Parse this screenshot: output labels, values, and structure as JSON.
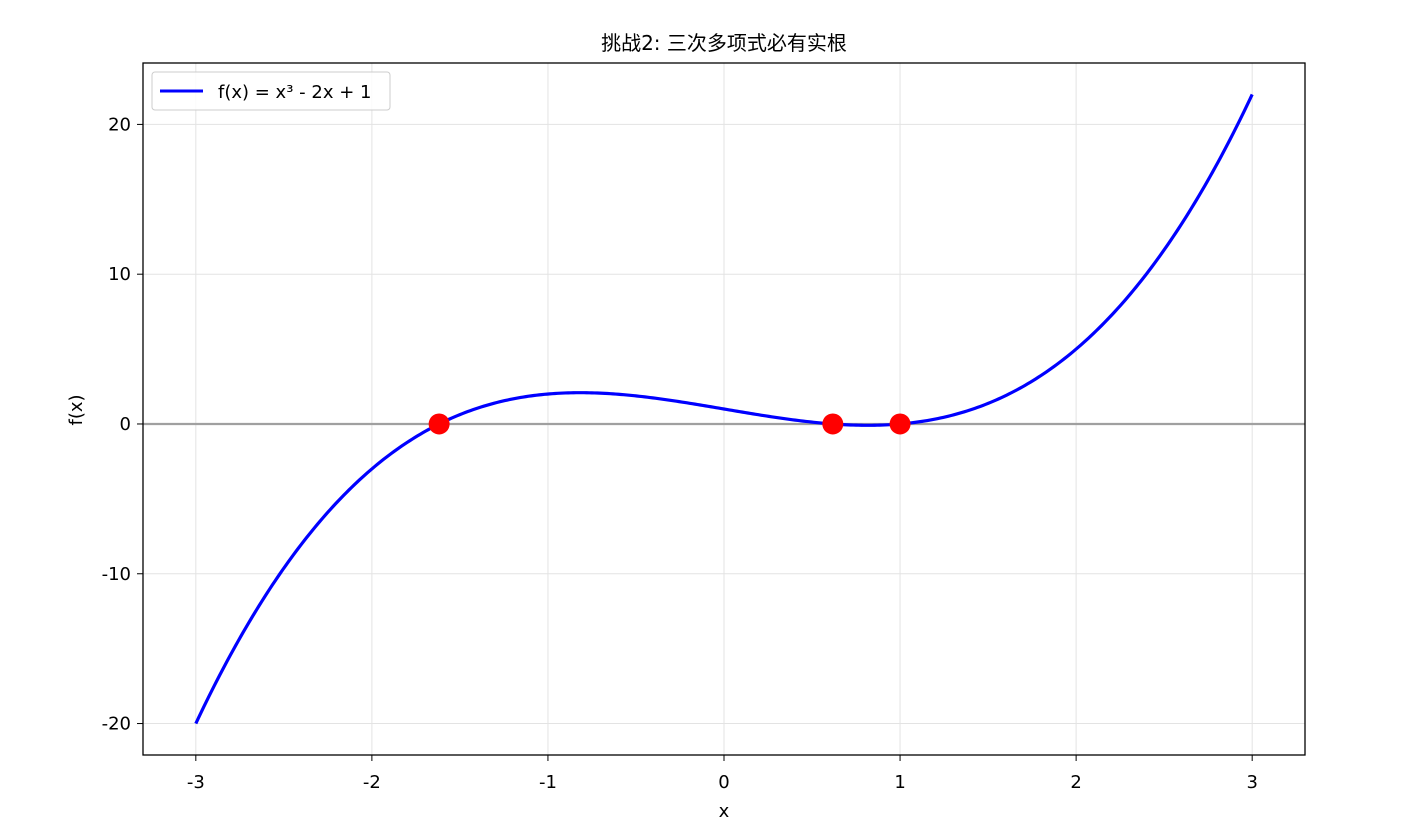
{
  "chart_data": {
    "type": "line",
    "title": "挑战2: 三次多项式必有实根",
    "xlabel": "x",
    "ylabel": "f(x)",
    "xlim": [
      -3.3,
      3.3
    ],
    "ylim": [
      -22.1,
      24.1
    ],
    "x_ticks": [
      -3,
      -2,
      -1,
      0,
      1,
      2,
      3
    ],
    "x_tick_labels": [
      "-3",
      "-2",
      "-1",
      "0",
      "1",
      "2",
      "3"
    ],
    "y_ticks": [
      -20,
      -10,
      0,
      10,
      20
    ],
    "y_tick_labels": [
      "-20",
      "-10",
      "0",
      "10",
      "20"
    ],
    "grid": true,
    "legend_position": "top-left",
    "series": [
      {
        "name": "f(x) = x³ - 2x + 1",
        "color": "#0000ff",
        "function": "x^3 - 2x + 1",
        "x_range": [
          -3,
          3
        ]
      }
    ],
    "reference_line": {
      "y": 0,
      "color": "#a0a0a0"
    },
    "points": [
      {
        "x": -1.618,
        "y": 0,
        "color": "#ff0000"
      },
      {
        "x": 0.618,
        "y": 0,
        "color": "#ff0000"
      },
      {
        "x": 1.0,
        "y": 0,
        "color": "#ff0000"
      }
    ]
  }
}
